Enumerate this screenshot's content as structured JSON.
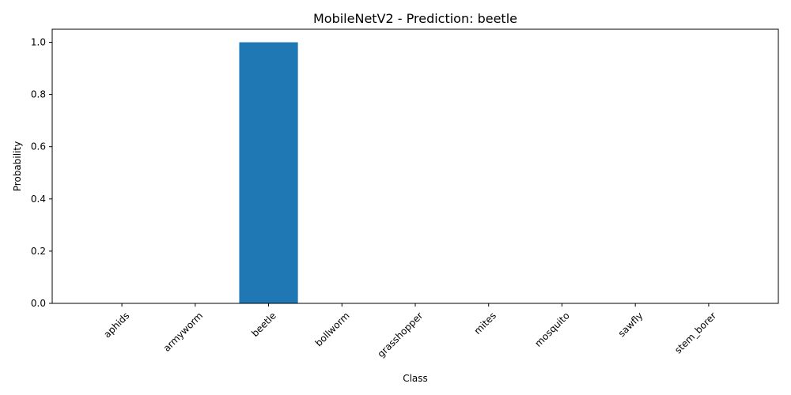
{
  "chart_data": {
    "type": "bar",
    "title": "MobileNetV2 - Prediction: beetle",
    "xlabel": "Class",
    "ylabel": "Probability",
    "categories": [
      "aphids",
      "armyworm",
      "beetle",
      "bollworm",
      "grasshopper",
      "mites",
      "mosquito",
      "sawfly",
      "stem_borer"
    ],
    "values": [
      0.0,
      0.0,
      1.0,
      0.0,
      0.0,
      0.0,
      0.0,
      0.0,
      0.0
    ],
    "ylim": [
      0,
      1.05
    ],
    "yticks": [
      "0.0",
      "0.2",
      "0.4",
      "0.6",
      "0.8",
      "1.0"
    ],
    "bar_color": "#1f77b4",
    "grid": false,
    "legend": false
  }
}
